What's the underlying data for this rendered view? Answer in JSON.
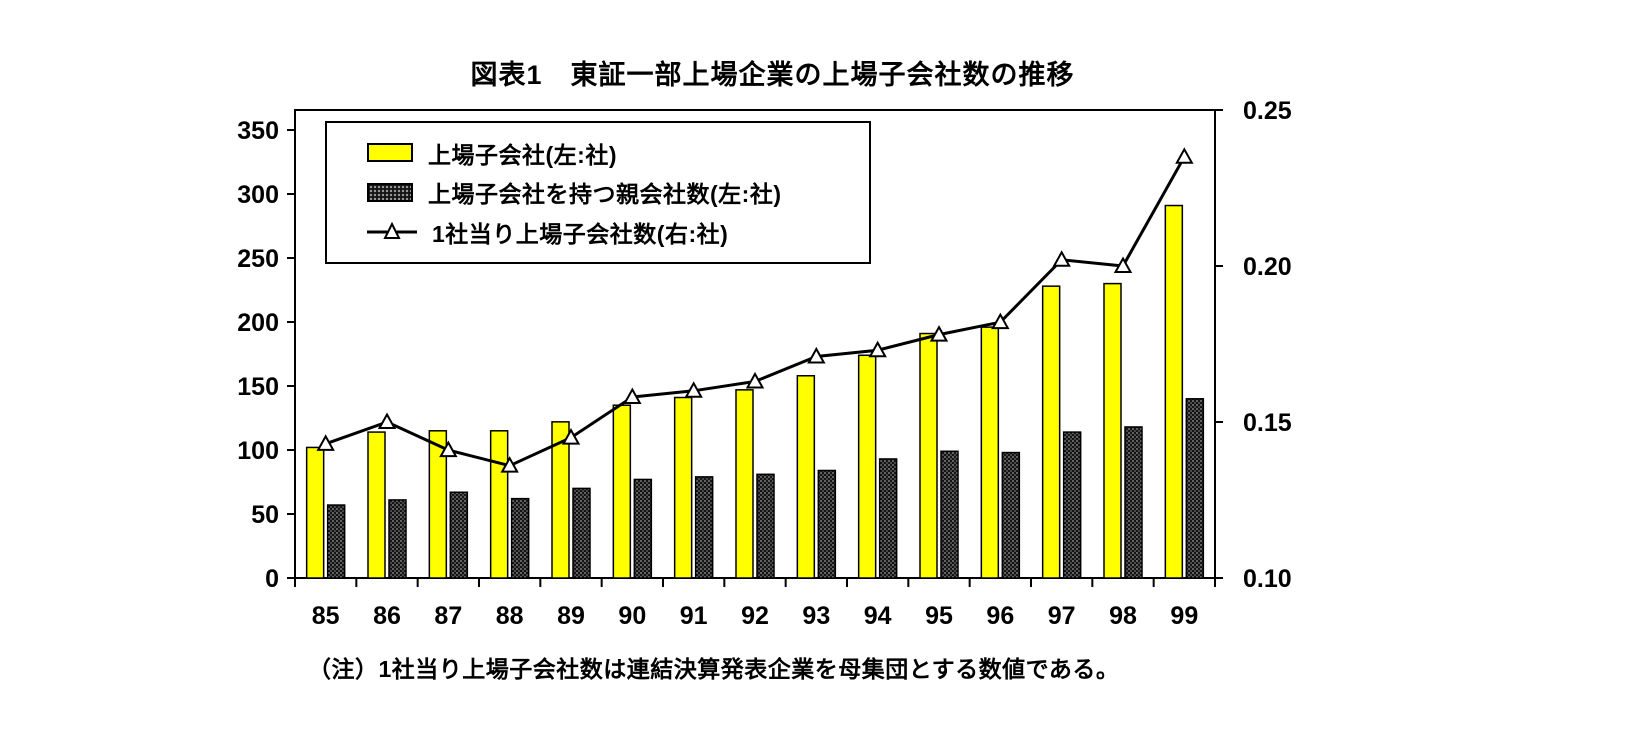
{
  "chart_data": {
    "type": "bar+line",
    "title": "図表1　東証一部上場企業の上場子会社数の推移",
    "note": "（注）1社当り上場子会社数は連結決算発表企業を母集団とする数値である。",
    "categories": [
      "85",
      "86",
      "87",
      "88",
      "89",
      "90",
      "91",
      "92",
      "93",
      "94",
      "95",
      "96",
      "97",
      "98",
      "99"
    ],
    "series": [
      {
        "name": "上場子会社(左:社)",
        "type": "bar",
        "axis": "left",
        "color": "#ffff00",
        "values": [
          102,
          114,
          115,
          115,
          122,
          135,
          141,
          147,
          158,
          174,
          191,
          196,
          228,
          230,
          291
        ]
      },
      {
        "name": "上場子会社を持つ親会社数(左:社)",
        "type": "bar",
        "axis": "left",
        "color": "#141414",
        "pattern": "dots",
        "values": [
          57,
          61,
          67,
          62,
          70,
          77,
          79,
          81,
          84,
          93,
          99,
          98,
          114,
          118,
          140
        ]
      },
      {
        "name": "1社当り上場子会社数(右:社)",
        "type": "line",
        "axis": "right",
        "color": "#000000",
        "marker": "triangle",
        "values": [
          0.143,
          0.15,
          0.141,
          0.136,
          0.145,
          0.158,
          0.16,
          0.163,
          0.171,
          0.173,
          0.178,
          0.182,
          0.202,
          0.2,
          0.235
        ]
      }
    ],
    "left_axis": {
      "min": 0,
      "max": 350,
      "ticks": [
        0,
        50,
        100,
        150,
        200,
        250,
        300,
        350
      ]
    },
    "right_axis": {
      "min": 0.1,
      "max": 0.25,
      "ticks": [
        "0.10",
        "0.15",
        "0.20",
        "0.25"
      ]
    },
    "legend_position": "top-left-inside",
    "grid": false
  }
}
